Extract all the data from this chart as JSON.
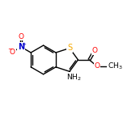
{
  "bg_color": "#ffffff",
  "line_color": "#000000",
  "lw": 1.0,
  "atom_colors": {
    "S": "#f5a800",
    "O": "#ff0000",
    "N": "#0000cc",
    "C": "#000000"
  },
  "font_size": 6.5,
  "fig_size": [
    1.52,
    1.52
  ],
  "dpi": 100,
  "xlim": [
    0,
    10
  ],
  "ylim": [
    0,
    10
  ]
}
